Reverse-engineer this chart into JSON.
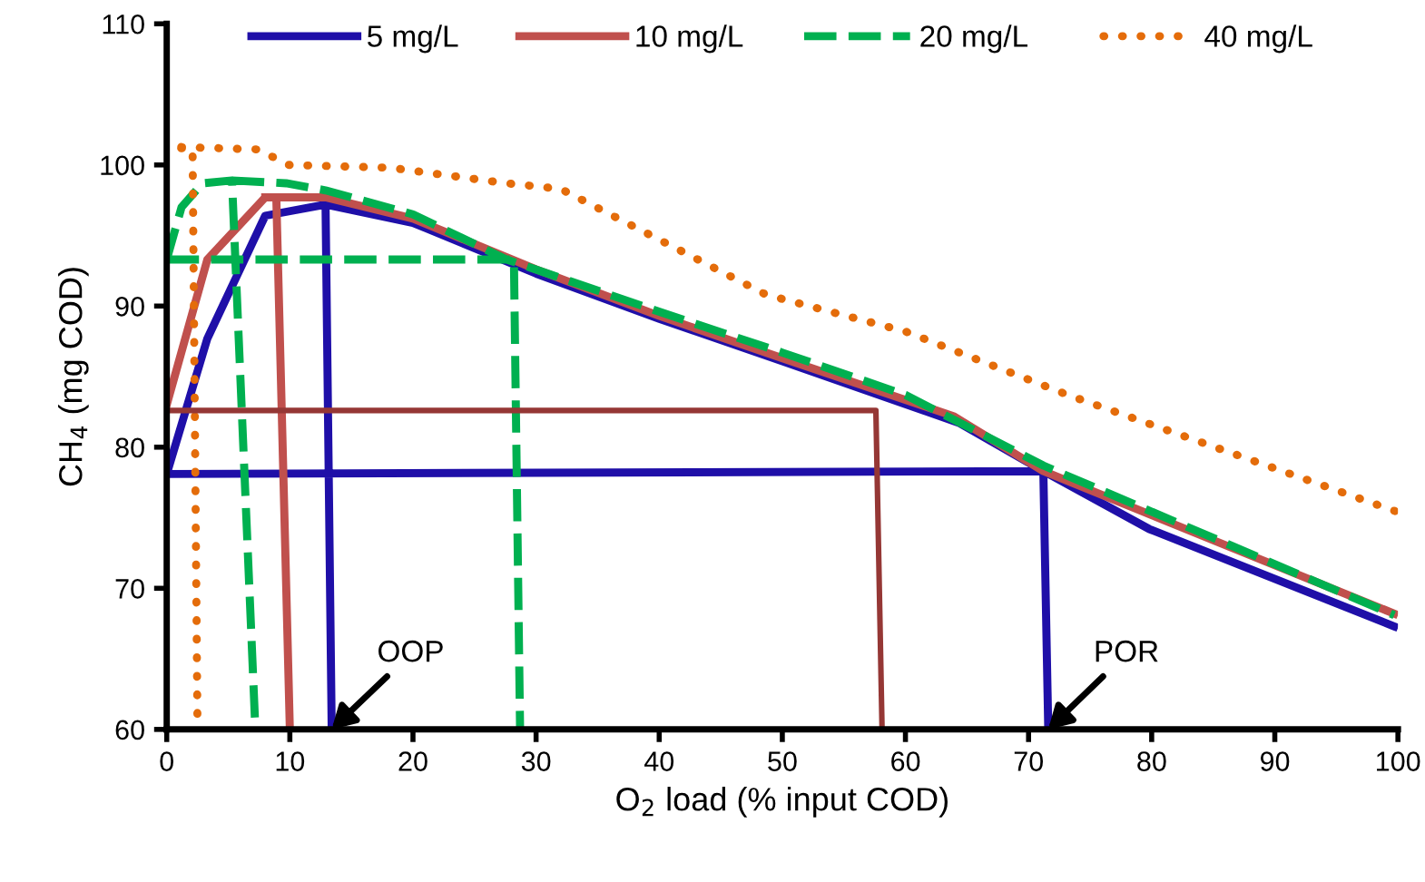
{
  "chart_data": {
    "type": "line",
    "xlabel": "O$_{2}$ load (% input COD)",
    "ylabel": "CH$_{4}$ (mg COD)",
    "xlim": [
      0,
      100
    ],
    "ylim": [
      60,
      110
    ],
    "xticks": [
      0,
      10,
      20,
      30,
      40,
      50,
      60,
      70,
      80,
      90,
      100
    ],
    "yticks": [
      60,
      70,
      80,
      90,
      100,
      110
    ],
    "grid": false,
    "legend": "top",
    "marker": "none",
    "series": [
      {
        "name": "5 mg/L",
        "color": "#1f0fa8",
        "line_style": "solid",
        "x": [
          0,
          3.3,
          8.0,
          12.9,
          13.4,
          null,
          12.9,
          20,
          30,
          40,
          50,
          64.4,
          71.2,
          79.8,
          99.7,
          null,
          0,
          71.2,
          71.6
        ],
        "values": [
          78.1,
          87.7,
          96.4,
          97.2,
          60,
          null,
          97.2,
          95.9,
          92.3,
          89.1,
          86.1,
          81.7,
          78.3,
          74.2,
          67.3,
          null,
          78.1,
          78.3,
          60
        ]
      },
      {
        "name": "10 mg/L",
        "color": "#c0504d",
        "line_style": "solid",
        "x": [
          0,
          3.3,
          8.0,
          8.9,
          10.0,
          null,
          8.0,
          12.9,
          20,
          30,
          40,
          50,
          63.9,
          71.2,
          99.7
        ],
        "values": [
          83.0,
          93.3,
          97.7,
          97.7,
          60,
          null,
          97.7,
          97.7,
          96.2,
          92.6,
          89.3,
          86.3,
          82.2,
          78.3,
          68.2
        ]
      },
      {
        "name": "20 mg/L",
        "color": "#00b050",
        "line_style": "dashed",
        "x": [
          0,
          1.2,
          2.9,
          5.3,
          7.2,
          null,
          5.3,
          9.7,
          12.9,
          20,
          27.6,
          40,
          50,
          60,
          71.2,
          99.7,
          null,
          0,
          28.2,
          28.7
        ],
        "values": [
          93.3,
          97.0,
          98.7,
          98.9,
          60,
          null,
          98.9,
          98.7,
          98.2,
          96.5,
          93.3,
          89.6,
          86.7,
          83.7,
          78.7,
          68.1,
          null,
          93.3,
          93.3,
          60
        ]
      },
      {
        "name": "40 mg/L",
        "color": "#e46c0a",
        "line_style": "dotted",
        "x": [
          0,
          2.1,
          2.5,
          null,
          0,
          7.4,
          9.9,
          18.2,
          27.6,
          32.0,
          48.7,
          60,
          73.2,
          100
        ],
        "values": [
          101.3,
          101.1,
          60,
          null,
          101.3,
          101.1,
          100.0,
          99.8,
          98.7,
          98.3,
          90.8,
          88.2,
          83.7,
          75.4
        ]
      },
      {
        "color": "#953735",
        "line_style": "solid",
        "x": [
          0,
          57.6,
          58.1
        ],
        "values": [
          82.6,
          82.6,
          60
        ]
      }
    ],
    "annotations": [
      {
        "text": "OOP",
        "x": 13.4,
        "y": 60
      },
      {
        "text": "POR",
        "x": 71.6,
        "y": 60
      }
    ]
  }
}
